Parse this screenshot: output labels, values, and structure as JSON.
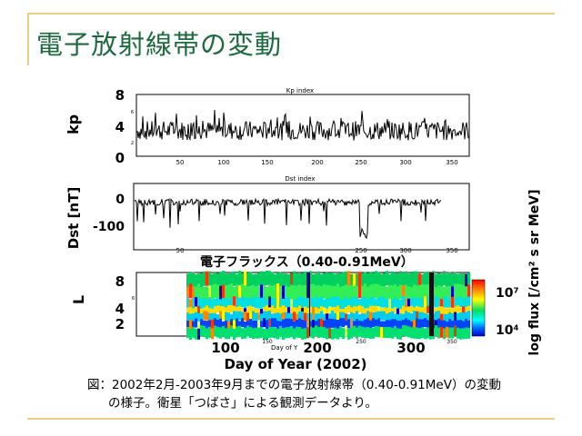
{
  "slide": {
    "title": "電子放射線帯の変動",
    "caption_line1": "図：2002年2月-2003年9月までの電子放射線帯（0.40-0.91MeV）の変動",
    "caption_line2": "の様子。衛星「つばさ」による観測データより。"
  },
  "figure": {
    "panel1": {
      "title": "Kp index",
      "ylabel": "kp",
      "yticks": [
        "8",
        "4",
        "0"
      ],
      "minor_yticks": [
        "6",
        "2"
      ],
      "xticks": [
        "50",
        "100",
        "150",
        "200",
        "250",
        "300",
        "350"
      ]
    },
    "panel2": {
      "title": "Dst index",
      "ylabel": "Dst [nT]",
      "yticks": [
        "0",
        "-100"
      ],
      "xticks": [
        "50",
        "250",
        "300",
        "350"
      ],
      "right_label": "電子フラックス（0.40-0.91MeV）"
    },
    "panel3": {
      "ylabel": "L",
      "yticks": [
        "8",
        "4",
        "2"
      ],
      "minor_yticks": [
        "6"
      ],
      "xticks_small": [
        "150",
        "250"
      ],
      "xticks_big": [
        "100",
        "200",
        "300"
      ],
      "xlabel_small": "Day of Y",
      "xticks_right": [
        "350"
      ]
    },
    "xlabel": "Day of Year (2002)",
    "colorbar": {
      "label": "log flux [/cm² s sr MeV]",
      "tick_top": "10⁷",
      "tick_bottom": "10⁴",
      "colors": [
        "#ff0000",
        "#ff8800",
        "#ffff00",
        "#00dd66",
        "#00ffff",
        "#0066ff",
        "#0000cc"
      ]
    }
  }
}
